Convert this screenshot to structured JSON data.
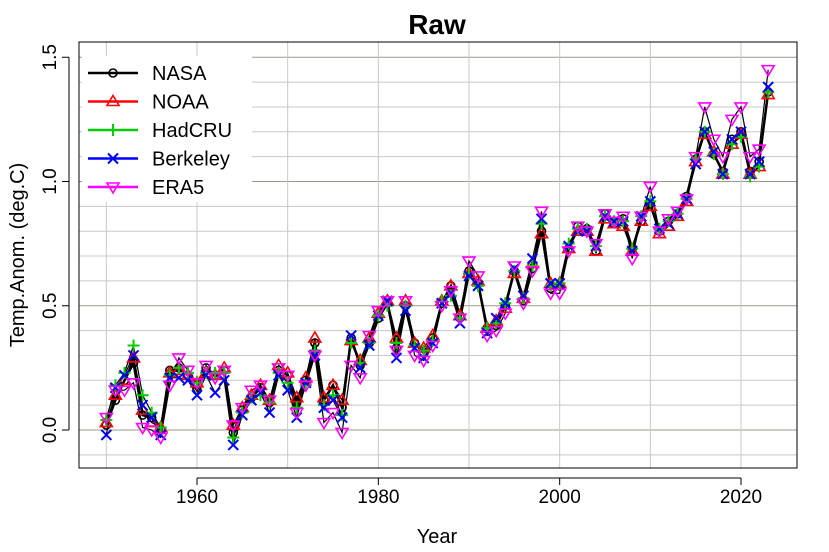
{
  "chart_data": {
    "type": "line",
    "title": "Raw",
    "xlabel": "Year",
    "ylabel": "Temp.Anom. (deg.C)",
    "xlim": [
      1947,
      2026
    ],
    "ylim": [
      -0.15,
      1.55
    ],
    "xticks": [
      1960,
      1980,
      2000,
      2020
    ],
    "yticks": [
      0.0,
      0.5,
      1.0,
      1.5
    ],
    "ytick_labels": [
      "0.0",
      "0.5",
      "1.0",
      "1.5"
    ],
    "grid": true,
    "legend_position": "top-left",
    "x_start": 1950,
    "series": [
      {
        "name": "NASA",
        "color": "#000000",
        "marker": "circle",
        "values": [
          0.02,
          0.12,
          0.2,
          0.27,
          0.06,
          0.05,
          0.0,
          0.24,
          0.25,
          0.22,
          0.16,
          0.25,
          0.22,
          0.24,
          -0.01,
          0.08,
          0.13,
          0.17,
          0.11,
          0.24,
          0.22,
          0.11,
          0.2,
          0.35,
          0.12,
          0.18,
          0.09,
          0.37,
          0.26,
          0.35,
          0.45,
          0.51,
          0.33,
          0.5,
          0.35,
          0.31,
          0.37,
          0.51,
          0.58,
          0.46,
          0.64,
          0.59,
          0.41,
          0.42,
          0.5,
          0.64,
          0.52,
          0.65,
          0.8,
          0.57,
          0.58,
          0.73,
          0.82,
          0.81,
          0.72,
          0.87,
          0.83,
          0.85,
          0.73,
          0.84,
          0.91,
          0.8,
          0.84,
          0.87,
          0.94,
          1.09,
          1.2,
          1.11,
          1.04,
          1.17,
          1.2,
          1.04,
          1.08,
          1.36
        ]
      },
      {
        "name": "NOAA",
        "color": "#ff0000",
        "marker": "triangle-up",
        "values": [
          0.03,
          0.14,
          0.2,
          0.29,
          0.08,
          0.03,
          0.01,
          0.23,
          0.24,
          0.22,
          0.19,
          0.23,
          0.22,
          0.25,
          0.02,
          0.09,
          0.14,
          0.18,
          0.12,
          0.26,
          0.23,
          0.13,
          0.21,
          0.37,
          0.13,
          0.18,
          0.12,
          0.36,
          0.28,
          0.37,
          0.47,
          0.52,
          0.37,
          0.52,
          0.35,
          0.33,
          0.38,
          0.52,
          0.58,
          0.46,
          0.63,
          0.6,
          0.41,
          0.44,
          0.49,
          0.63,
          0.53,
          0.67,
          0.79,
          0.59,
          0.59,
          0.73,
          0.8,
          0.8,
          0.72,
          0.85,
          0.83,
          0.82,
          0.72,
          0.84,
          0.9,
          0.79,
          0.82,
          0.86,
          0.92,
          1.08,
          1.19,
          1.12,
          1.03,
          1.15,
          1.19,
          1.03,
          1.06,
          1.35
        ]
      },
      {
        "name": "HadCRU",
        "color": "#00cd00",
        "marker": "plus",
        "values": [
          0.04,
          0.18,
          0.23,
          0.34,
          0.14,
          0.07,
          0.01,
          0.22,
          0.25,
          0.23,
          0.19,
          0.23,
          0.23,
          0.23,
          -0.03,
          0.07,
          0.13,
          0.14,
          0.11,
          0.23,
          0.19,
          0.09,
          0.18,
          0.32,
          0.1,
          0.14,
          0.06,
          0.35,
          0.27,
          0.35,
          0.46,
          0.5,
          0.35,
          0.5,
          0.34,
          0.32,
          0.36,
          0.52,
          0.54,
          0.45,
          0.63,
          0.58,
          0.41,
          0.43,
          0.51,
          0.64,
          0.53,
          0.66,
          0.83,
          0.58,
          0.59,
          0.75,
          0.81,
          0.81,
          0.74,
          0.86,
          0.84,
          0.84,
          0.73,
          0.86,
          0.92,
          0.81,
          0.84,
          0.87,
          0.93,
          1.09,
          1.2,
          1.11,
          1.03,
          1.15,
          1.18,
          1.02,
          1.06,
          1.36
        ]
      },
      {
        "name": "Berkeley",
        "color": "#0000ff",
        "marker": "cross",
        "values": [
          -0.02,
          0.17,
          0.22,
          0.3,
          0.1,
          0.05,
          -0.02,
          0.21,
          0.21,
          0.2,
          0.14,
          0.22,
          0.15,
          0.2,
          -0.06,
          0.06,
          0.12,
          0.15,
          0.07,
          0.22,
          0.16,
          0.05,
          0.19,
          0.3,
          0.09,
          0.12,
          0.05,
          0.38,
          0.25,
          0.34,
          0.46,
          0.52,
          0.29,
          0.48,
          0.33,
          0.29,
          0.35,
          0.51,
          0.55,
          0.43,
          0.62,
          0.58,
          0.39,
          0.45,
          0.51,
          0.65,
          0.54,
          0.69,
          0.85,
          0.59,
          0.59,
          0.74,
          0.8,
          0.8,
          0.74,
          0.86,
          0.84,
          0.84,
          0.72,
          0.86,
          0.92,
          0.81,
          0.83,
          0.87,
          0.93,
          1.07,
          1.2,
          1.12,
          1.03,
          1.17,
          1.2,
          1.03,
          1.08,
          1.38
        ]
      },
      {
        "name": "ERA5",
        "color": "#ff00ff",
        "marker": "triangle-down",
        "values": [
          0.05,
          0.16,
          0.16,
          0.19,
          0.01,
          0.0,
          -0.03,
          0.18,
          0.29,
          0.24,
          0.19,
          0.26,
          0.21,
          0.24,
          0.02,
          0.09,
          0.16,
          0.18,
          0.12,
          0.25,
          0.22,
          0.07,
          0.18,
          0.3,
          0.03,
          0.07,
          -0.01,
          0.26,
          0.21,
          0.38,
          0.48,
          0.52,
          0.32,
          0.52,
          0.3,
          0.28,
          0.34,
          0.5,
          0.56,
          0.45,
          0.68,
          0.62,
          0.38,
          0.4,
          0.47,
          0.66,
          0.51,
          0.64,
          0.88,
          0.55,
          0.55,
          0.72,
          0.82,
          0.8,
          0.75,
          0.87,
          0.84,
          0.86,
          0.69,
          0.86,
          0.98,
          0.8,
          0.85,
          0.88,
          0.93,
          1.1,
          1.3,
          1.17,
          1.1,
          1.25,
          1.3,
          1.1,
          1.13,
          1.45
        ]
      }
    ]
  }
}
